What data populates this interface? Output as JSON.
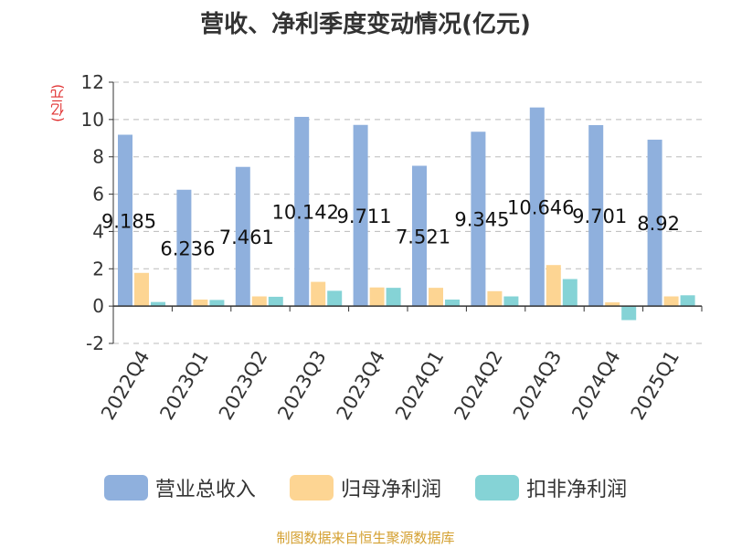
{
  "chart_data": {
    "type": "bar",
    "title": "营收、净利季度变动情况(亿元)",
    "ylabel": "(亿元)",
    "categories": [
      "2022Q4",
      "2023Q1",
      "2023Q2",
      "2023Q3",
      "2023Q4",
      "2024Q1",
      "2024Q2",
      "2024Q3",
      "2024Q4",
      "2025Q1"
    ],
    "ylim": [
      -2,
      12
    ],
    "yticks": [
      -2,
      0,
      2,
      4,
      6,
      8,
      10,
      12
    ],
    "grid": true,
    "legend_position": "bottom",
    "series": [
      {
        "name": "营业总收入",
        "color": "#8fb0dd",
        "values": [
          9.185,
          6.236,
          7.461,
          10.142,
          9.711,
          7.521,
          9.345,
          10.646,
          9.701,
          8.92
        ]
      },
      {
        "name": "归母净利润",
        "color": "#fdd593",
        "values": [
          1.78,
          0.35,
          0.52,
          1.3,
          1.0,
          0.98,
          0.8,
          2.2,
          0.2,
          0.52
        ]
      },
      {
        "name": "扣非净利润",
        "color": "#85d3d6",
        "values": [
          0.22,
          0.33,
          0.5,
          0.82,
          0.98,
          0.35,
          0.52,
          1.45,
          -0.75,
          0.58
        ]
      }
    ],
    "data_labels": [
      "9.185",
      "6.236",
      "7.461",
      "10.142",
      "9.711",
      "7.521",
      "9.345",
      "10.646",
      "9.701",
      "8.92"
    ]
  },
  "footer": {
    "source": "制图数据来自恒生聚源数据库"
  }
}
